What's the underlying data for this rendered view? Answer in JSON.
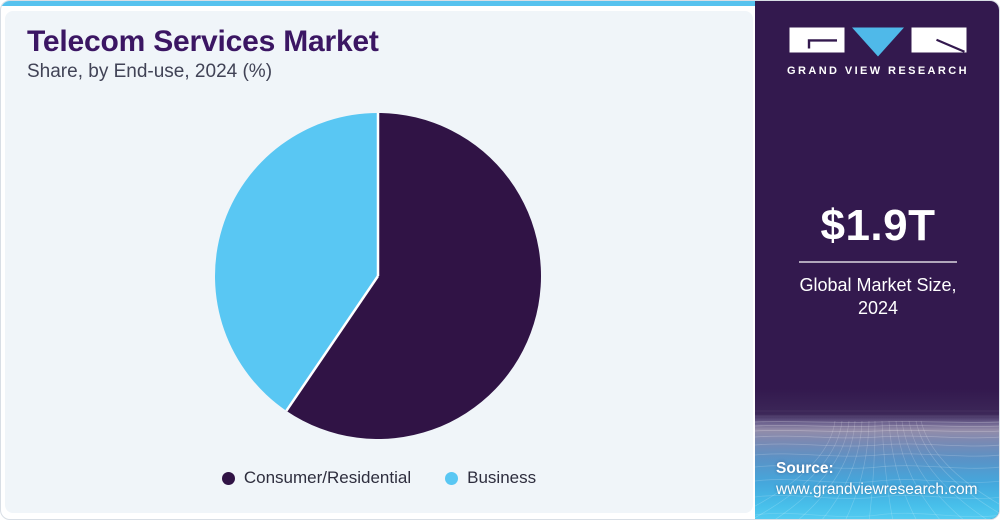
{
  "header": {
    "title": "Telecom Services Market",
    "subtitle": "Share, by End-use, 2024 (%)"
  },
  "chart_data": {
    "type": "pie",
    "title": "Telecom Services Market Share, by End-use, 2024 (%)",
    "categories": [
      "Consumer/Residential",
      "Business"
    ],
    "values": [
      59.5,
      40.5
    ],
    "unit": "%",
    "colors": [
      "#301345",
      "#59C7F3"
    ],
    "start_angle_deg": 0,
    "direction": "clockwise",
    "legend_position": "bottom",
    "data_labels": "none"
  },
  "sidebar": {
    "logo": {
      "brand": "GRAND VIEW RESEARCH",
      "triangle_color": "#4FB9E9"
    },
    "stat": {
      "value": "$1.9T",
      "label_line1": "Global Market Size,",
      "label_line2": "2024"
    },
    "source": {
      "label": "Source:",
      "url": "www.grandviewresearch.com"
    }
  },
  "colors": {
    "accent_cyan": "#56C2EE",
    "panel_bg": "#F0F5F9",
    "card_border": "#D8DEE5",
    "sidebar_bg": "#33194E",
    "title_text": "#3B1663",
    "subtitle_text": "#414356",
    "legend_text": "#2E2E3E"
  }
}
